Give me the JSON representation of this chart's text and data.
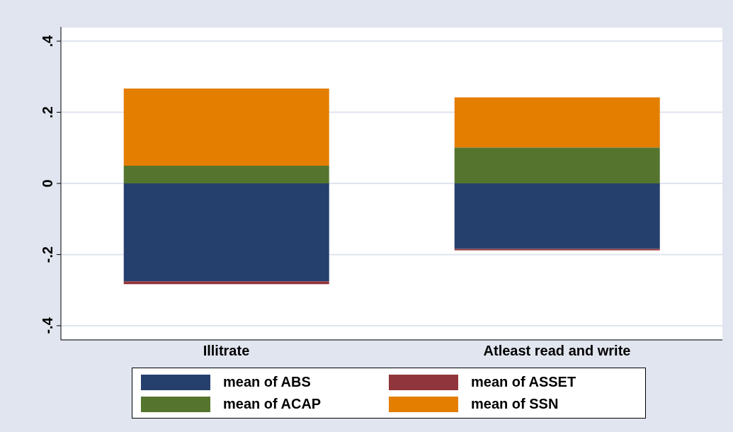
{
  "chart_data": {
    "type": "bar",
    "stacked": true,
    "categories": [
      "Illitrate",
      "Atleast read and write"
    ],
    "series": [
      {
        "name": "mean of ABS",
        "color": "#26406e",
        "values": [
          -0.275,
          -0.184
        ]
      },
      {
        "name": "mean of ASSET",
        "color": "#90353b",
        "values": [
          -0.008,
          -0.004
        ]
      },
      {
        "name": "mean of ACAP",
        "color": "#55752f",
        "values": [
          0.05,
          0.101
        ]
      },
      {
        "name": "mean of SSN",
        "color": "#e37e00",
        "values": [
          0.217,
          0.141
        ]
      }
    ],
    "ylim": [
      -0.44,
      0.44
    ],
    "yticks": [
      {
        "value": -0.4,
        "label": "-.4"
      },
      {
        "value": -0.2,
        "label": "-.2"
      },
      0,
      {
        "value": 0.2,
        "label": ".2"
      },
      {
        "value": 0.4,
        "label": ".4"
      }
    ],
    "grid": "y",
    "legend": "bottom"
  }
}
